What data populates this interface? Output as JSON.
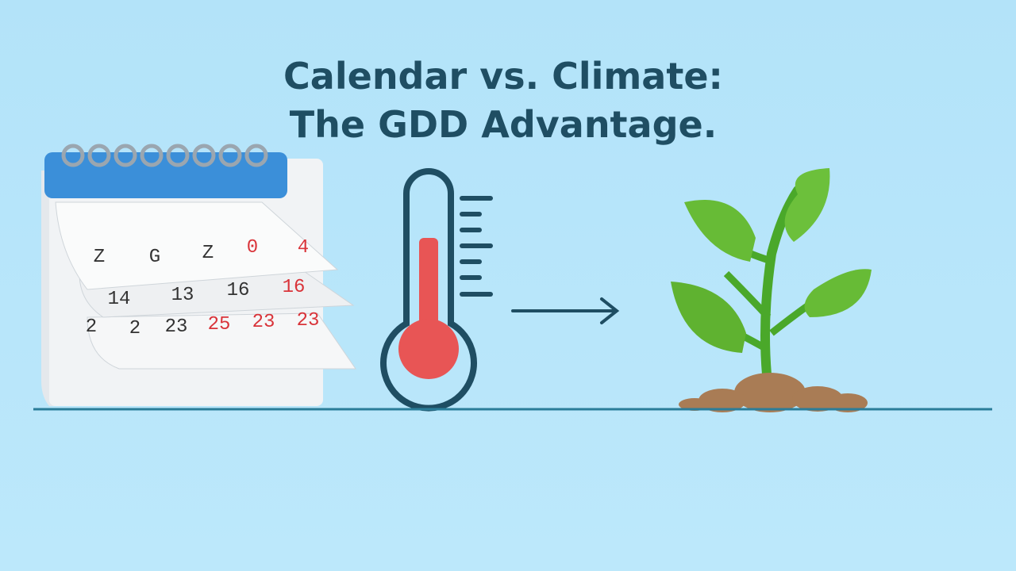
{
  "title": {
    "line1": "Calendar vs. Climate:",
    "line2": "The GDD Advantage."
  },
  "calendar": {
    "rows": [
      [
        "Z",
        "G",
        "Z",
        "0",
        "4"
      ],
      [
        "14",
        "13",
        "16",
        "16"
      ],
      [
        "2",
        "2",
        "23",
        "25",
        "23",
        "23"
      ]
    ]
  }
}
